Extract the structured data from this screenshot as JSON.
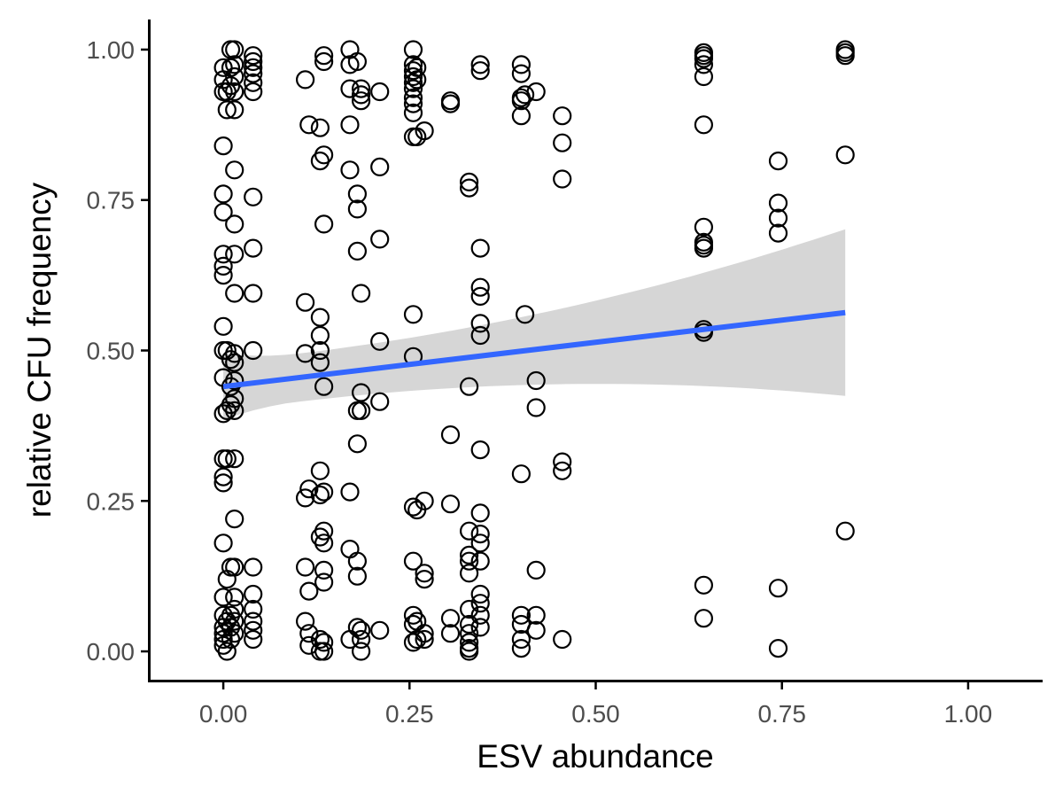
{
  "chart_data": {
    "type": "scatter",
    "xlabel": "ESV abundance",
    "ylabel": "relative CFU frequency",
    "xlim": [
      -0.1,
      1.1
    ],
    "ylim": [
      -0.05,
      1.05
    ],
    "x_ticks": [
      0.0,
      0.25,
      0.5,
      0.75,
      1.0
    ],
    "y_ticks": [
      0.0,
      0.25,
      0.5,
      0.75,
      1.0
    ],
    "x_tick_labels": [
      "0.00",
      "0.25",
      "0.50",
      "0.75",
      "1.00"
    ],
    "y_tick_labels": [
      "0.00",
      "0.25",
      "0.50",
      "0.75",
      "1.00"
    ],
    "grid": false,
    "colors": {
      "points": "#000000",
      "fit_line": "#3366ff",
      "ci_band": "#d6d6d6"
    },
    "fit": {
      "method": "linear",
      "x_range": [
        0.0,
        0.835
      ],
      "y_at_start": 0.44,
      "y_at_end": 0.563,
      "ci_at_start": [
        0.395,
        0.505
      ],
      "ci_at_end": [
        0.425,
        0.702
      ]
    },
    "points": [
      [
        0.0,
        0.97
      ],
      [
        0.0,
        0.95
      ],
      [
        0.0,
        0.93
      ],
      [
        0.0,
        0.84
      ],
      [
        0.0,
        0.76
      ],
      [
        0.0,
        0.73
      ],
      [
        0.0,
        0.66
      ],
      [
        0.0,
        0.64
      ],
      [
        0.0,
        0.625
      ],
      [
        0.0,
        0.54
      ],
      [
        0.0,
        0.5
      ],
      [
        0.0,
        0.455
      ],
      [
        0.0,
        0.395
      ],
      [
        0.0,
        0.32
      ],
      [
        0.0,
        0.29
      ],
      [
        0.0,
        0.28
      ],
      [
        0.0,
        0.18
      ],
      [
        0.0,
        0.09
      ],
      [
        0.0,
        0.06
      ],
      [
        0.0,
        0.04
      ],
      [
        0.0,
        0.03
      ],
      [
        0.0,
        0.02
      ],
      [
        0.0,
        0.01
      ],
      [
        0.005,
        0.93
      ],
      [
        0.005,
        0.9
      ],
      [
        0.005,
        0.5
      ],
      [
        0.005,
        0.4
      ],
      [
        0.005,
        0.32
      ],
      [
        0.005,
        0.12
      ],
      [
        0.005,
        0.05
      ],
      [
        0.005,
        0.0
      ],
      [
        0.01,
        1.0
      ],
      [
        0.01,
        0.97
      ],
      [
        0.01,
        0.94
      ],
      [
        0.01,
        0.485
      ],
      [
        0.01,
        0.44
      ],
      [
        0.01,
        0.41
      ],
      [
        0.01,
        0.14
      ],
      [
        0.01,
        0.06
      ],
      [
        0.01,
        0.04
      ],
      [
        0.01,
        0.02
      ],
      [
        0.015,
        1.0
      ],
      [
        0.015,
        0.975
      ],
      [
        0.015,
        0.955
      ],
      [
        0.015,
        0.93
      ],
      [
        0.015,
        0.9
      ],
      [
        0.015,
        0.8
      ],
      [
        0.015,
        0.71
      ],
      [
        0.015,
        0.66
      ],
      [
        0.015,
        0.595
      ],
      [
        0.015,
        0.495
      ],
      [
        0.015,
        0.48
      ],
      [
        0.015,
        0.45
      ],
      [
        0.015,
        0.42
      ],
      [
        0.015,
        0.4
      ],
      [
        0.015,
        0.32
      ],
      [
        0.015,
        0.22
      ],
      [
        0.015,
        0.14
      ],
      [
        0.015,
        0.09
      ],
      [
        0.015,
        0.07
      ],
      [
        0.015,
        0.05
      ],
      [
        0.015,
        0.03
      ],
      [
        0.04,
        0.99
      ],
      [
        0.04,
        0.98
      ],
      [
        0.04,
        0.97
      ],
      [
        0.04,
        0.96
      ],
      [
        0.04,
        0.945
      ],
      [
        0.04,
        0.93
      ],
      [
        0.04,
        0.755
      ],
      [
        0.04,
        0.67
      ],
      [
        0.04,
        0.595
      ],
      [
        0.04,
        0.5
      ],
      [
        0.04,
        0.14
      ],
      [
        0.04,
        0.095
      ],
      [
        0.04,
        0.07
      ],
      [
        0.04,
        0.05
      ],
      [
        0.04,
        0.035
      ],
      [
        0.04,
        0.02
      ],
      [
        0.11,
        0.95
      ],
      [
        0.11,
        0.58
      ],
      [
        0.11,
        0.495
      ],
      [
        0.11,
        0.255
      ],
      [
        0.11,
        0.14
      ],
      [
        0.11,
        0.05
      ],
      [
        0.115,
        0.875
      ],
      [
        0.115,
        0.27
      ],
      [
        0.115,
        0.1
      ],
      [
        0.115,
        0.03
      ],
      [
        0.115,
        0.01
      ],
      [
        0.13,
        0.87
      ],
      [
        0.13,
        0.815
      ],
      [
        0.13,
        0.555
      ],
      [
        0.13,
        0.525
      ],
      [
        0.13,
        0.5
      ],
      [
        0.13,
        0.48
      ],
      [
        0.13,
        0.3
      ],
      [
        0.13,
        0.26
      ],
      [
        0.13,
        0.19
      ],
      [
        0.13,
        0.02
      ],
      [
        0.13,
        0.0
      ],
      [
        0.135,
        0.99
      ],
      [
        0.135,
        0.98
      ],
      [
        0.135,
        0.825
      ],
      [
        0.135,
        0.71
      ],
      [
        0.135,
        0.44
      ],
      [
        0.135,
        0.265
      ],
      [
        0.135,
        0.2
      ],
      [
        0.135,
        0.18
      ],
      [
        0.135,
        0.135
      ],
      [
        0.135,
        0.115
      ],
      [
        0.135,
        0.015
      ],
      [
        0.135,
        0.0
      ],
      [
        0.17,
        1.0
      ],
      [
        0.17,
        0.975
      ],
      [
        0.17,
        0.935
      ],
      [
        0.17,
        0.875
      ],
      [
        0.17,
        0.8
      ],
      [
        0.17,
        0.265
      ],
      [
        0.17,
        0.17
      ],
      [
        0.17,
        0.02
      ],
      [
        0.18,
        0.98
      ],
      [
        0.18,
        0.76
      ],
      [
        0.18,
        0.735
      ],
      [
        0.18,
        0.665
      ],
      [
        0.18,
        0.4
      ],
      [
        0.18,
        0.345
      ],
      [
        0.18,
        0.15
      ],
      [
        0.18,
        0.125
      ],
      [
        0.18,
        0.04
      ],
      [
        0.185,
        0.935
      ],
      [
        0.185,
        0.925
      ],
      [
        0.185,
        0.915
      ],
      [
        0.185,
        0.595
      ],
      [
        0.185,
        0.43
      ],
      [
        0.185,
        0.4
      ],
      [
        0.185,
        0.035
      ],
      [
        0.185,
        0.02
      ],
      [
        0.185,
        0.0
      ],
      [
        0.21,
        0.93
      ],
      [
        0.21,
        0.805
      ],
      [
        0.21,
        0.685
      ],
      [
        0.21,
        0.515
      ],
      [
        0.21,
        0.415
      ],
      [
        0.21,
        0.035
      ],
      [
        0.255,
        1.0
      ],
      [
        0.255,
        0.975
      ],
      [
        0.255,
        0.965
      ],
      [
        0.255,
        0.955
      ],
      [
        0.255,
        0.945
      ],
      [
        0.255,
        0.935
      ],
      [
        0.255,
        0.92
      ],
      [
        0.255,
        0.91
      ],
      [
        0.255,
        0.895
      ],
      [
        0.255,
        0.855
      ],
      [
        0.255,
        0.56
      ],
      [
        0.255,
        0.49
      ],
      [
        0.255,
        0.24
      ],
      [
        0.255,
        0.15
      ],
      [
        0.255,
        0.06
      ],
      [
        0.255,
        0.045
      ],
      [
        0.255,
        0.015
      ],
      [
        0.26,
        0.97
      ],
      [
        0.26,
        0.95
      ],
      [
        0.26,
        0.855
      ],
      [
        0.26,
        0.235
      ],
      [
        0.26,
        0.05
      ],
      [
        0.26,
        0.02
      ],
      [
        0.27,
        0.865
      ],
      [
        0.27,
        0.25
      ],
      [
        0.27,
        0.13
      ],
      [
        0.27,
        0.12
      ],
      [
        0.27,
        0.03
      ],
      [
        0.27,
        0.02
      ],
      [
        0.305,
        0.915
      ],
      [
        0.305,
        0.91
      ],
      [
        0.305,
        0.36
      ],
      [
        0.305,
        0.245
      ],
      [
        0.305,
        0.055
      ],
      [
        0.305,
        0.03
      ],
      [
        0.33,
        0.78
      ],
      [
        0.33,
        0.77
      ],
      [
        0.33,
        0.44
      ],
      [
        0.33,
        0.2
      ],
      [
        0.33,
        0.16
      ],
      [
        0.33,
        0.15
      ],
      [
        0.33,
        0.13
      ],
      [
        0.33,
        0.07
      ],
      [
        0.33,
        0.045
      ],
      [
        0.33,
        0.03
      ],
      [
        0.33,
        0.015
      ],
      [
        0.33,
        0.005
      ],
      [
        0.33,
        0.0
      ],
      [
        0.345,
        0.975
      ],
      [
        0.345,
        0.965
      ],
      [
        0.345,
        0.67
      ],
      [
        0.345,
        0.605
      ],
      [
        0.345,
        0.59
      ],
      [
        0.345,
        0.545
      ],
      [
        0.345,
        0.525
      ],
      [
        0.345,
        0.335
      ],
      [
        0.345,
        0.23
      ],
      [
        0.345,
        0.195
      ],
      [
        0.345,
        0.18
      ],
      [
        0.345,
        0.15
      ],
      [
        0.345,
        0.095
      ],
      [
        0.345,
        0.08
      ],
      [
        0.345,
        0.06
      ],
      [
        0.345,
        0.04
      ],
      [
        0.4,
        0.975
      ],
      [
        0.4,
        0.96
      ],
      [
        0.4,
        0.92
      ],
      [
        0.4,
        0.915
      ],
      [
        0.4,
        0.89
      ],
      [
        0.4,
        0.295
      ],
      [
        0.4,
        0.06
      ],
      [
        0.4,
        0.045
      ],
      [
        0.4,
        0.02
      ],
      [
        0.4,
        0.005
      ],
      [
        0.405,
        0.925
      ],
      [
        0.405,
        0.56
      ],
      [
        0.42,
        0.93
      ],
      [
        0.42,
        0.45
      ],
      [
        0.42,
        0.405
      ],
      [
        0.42,
        0.135
      ],
      [
        0.42,
        0.06
      ],
      [
        0.42,
        0.035
      ],
      [
        0.455,
        0.89
      ],
      [
        0.455,
        0.845
      ],
      [
        0.455,
        0.785
      ],
      [
        0.455,
        0.315
      ],
      [
        0.455,
        0.3
      ],
      [
        0.455,
        0.02
      ],
      [
        0.645,
        0.995
      ],
      [
        0.645,
        0.99
      ],
      [
        0.645,
        0.985
      ],
      [
        0.645,
        0.975
      ],
      [
        0.645,
        0.955
      ],
      [
        0.645,
        0.875
      ],
      [
        0.645,
        0.705
      ],
      [
        0.645,
        0.68
      ],
      [
        0.645,
        0.675
      ],
      [
        0.645,
        0.67
      ],
      [
        0.645,
        0.535
      ],
      [
        0.645,
        0.53
      ],
      [
        0.645,
        0.11
      ],
      [
        0.645,
        0.055
      ],
      [
        0.745,
        0.815
      ],
      [
        0.745,
        0.745
      ],
      [
        0.745,
        0.72
      ],
      [
        0.745,
        0.695
      ],
      [
        0.745,
        0.105
      ],
      [
        0.745,
        0.005
      ],
      [
        0.835,
        1.0
      ],
      [
        0.835,
        0.995
      ],
      [
        0.835,
        0.99
      ],
      [
        0.835,
        0.825
      ],
      [
        0.835,
        0.2
      ]
    ]
  }
}
